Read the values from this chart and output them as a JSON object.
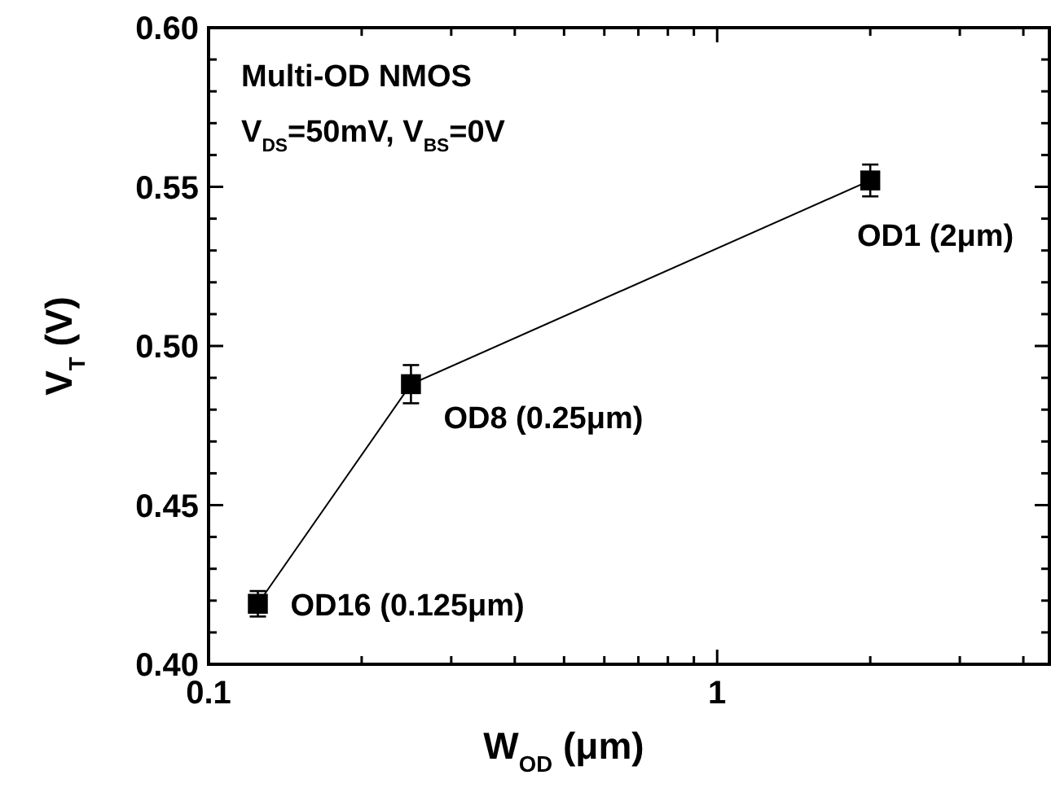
{
  "chart_data": {
    "type": "line",
    "xlabel": "W$_{OD}$ (μm)",
    "ylabel": "V$_{T}$ (V)",
    "annotations": [
      "Multi-OD NMOS",
      "V$_{DS}$=50mV, V$_{BS}$=0V",
      {
        "text": "OD16 (0.125μm)",
        "x": 0.125,
        "y": 0.419
      },
      {
        "text": "OD8 (0.25μm)",
        "x": 0.25,
        "y": 0.488
      },
      {
        "text": "OD1 (2μm)",
        "x": 2,
        "y": 0.552
      }
    ],
    "log": "x",
    "x": [
      0.125,
      0.25,
      2
    ],
    "series": [
      {
        "color": "#000000",
        "values": [
          0.419,
          0.488,
          0.552
        ],
        "errors": [
          0.004,
          0.006,
          0.005
        ]
      }
    ],
    "marker": "square",
    "line_style": "solid",
    "grid": false,
    "xlim": [
      0.1,
      4.5
    ],
    "xticks": [
      0.1,
      {
        "value": 0.2,
        "label": null
      },
      {
        "value": 0.3,
        "label": null
      },
      {
        "value": 0.4,
        "label": null
      },
      {
        "value": 0.5,
        "label": null
      },
      {
        "value": 0.6,
        "label": null
      },
      {
        "value": 0.7,
        "label": null
      },
      {
        "value": 0.8,
        "label": null
      },
      {
        "value": 0.9,
        "label": null
      },
      1,
      {
        "value": 2,
        "label": null
      },
      {
        "value": 3,
        "label": null
      },
      {
        "value": 4,
        "label": null
      }
    ],
    "ylim": [
      0.4,
      0.6
    ],
    "yticks": [
      {
        "value": 0.4,
        "label": "0.40"
      },
      {
        "value": 0.41,
        "label": null
      },
      {
        "value": 0.42,
        "label": null
      },
      {
        "value": 0.43,
        "label": null
      },
      {
        "value": 0.44,
        "label": null
      },
      {
        "value": 0.45,
        "label": "0.45"
      },
      {
        "value": 0.46,
        "label": null
      },
      {
        "value": 0.47,
        "label": null
      },
      {
        "value": 0.48,
        "label": null
      },
      {
        "value": 0.49,
        "label": null
      },
      {
        "value": 0.5,
        "label": "0.50"
      },
      {
        "value": 0.51,
        "label": null
      },
      {
        "value": 0.52,
        "label": null
      },
      {
        "value": 0.53,
        "label": null
      },
      {
        "value": 0.54,
        "label": null
      },
      {
        "value": 0.55,
        "label": "0.55"
      },
      {
        "value": 0.56,
        "label": null
      },
      {
        "value": 0.57,
        "label": null
      },
      {
        "value": 0.58,
        "label": null
      },
      {
        "value": 0.59,
        "label": null
      },
      {
        "value": 0.6,
        "label": "0.60"
      }
    ]
  }
}
